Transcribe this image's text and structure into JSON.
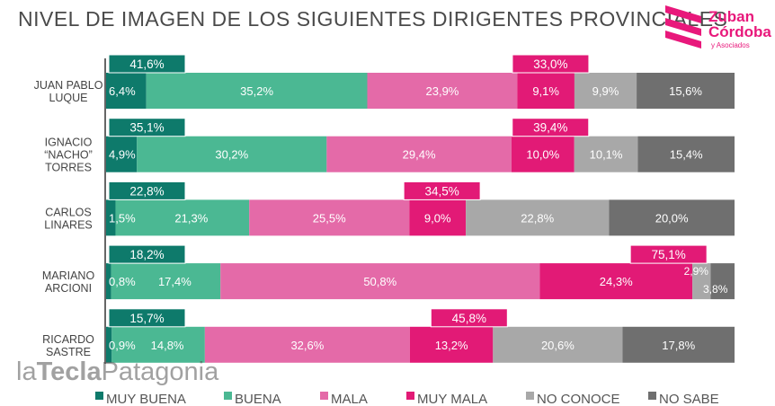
{
  "header": {
    "title": "NIVEL DE IMAGEN DE LOS SIGUIENTES DIRIGENTES PROVINCIALES",
    "brand_line1": "Zuban",
    "brand_line2": "Córdoba",
    "brand_sub": "y Asociados"
  },
  "watermark": {
    "part1": "la",
    "part2": "Tecla",
    "part3": "Patagonia"
  },
  "colors": {
    "muy_buena": "#0e7a6b",
    "buena": "#4bb893",
    "mala": "#e46aa8",
    "muy_mala": "#e21a76",
    "no_conoce": "#a8a8a8",
    "no_sabe": "#6f6f6f",
    "brand": "#e8187b"
  },
  "chart_data": {
    "type": "bar",
    "orientation": "horizontal",
    "stacked": true,
    "title": "NIVEL DE IMAGEN DE LOS SIGUIENTES DIRIGENTES PROVINCIALES",
    "categories": [
      [
        "JUAN PABLO",
        "LUQUE"
      ],
      [
        "IGNACIO",
        "“NACHO”",
        "TORRES"
      ],
      [
        "CARLOS",
        "LINARES"
      ],
      [
        "MARIANO",
        "ARCIONI"
      ],
      [
        "RICARDO",
        "SASTRE"
      ]
    ],
    "series": [
      {
        "name": "MUY BUENA",
        "key": "muy_buena",
        "values": [
          6.4,
          4.9,
          1.5,
          0.8,
          0.9
        ],
        "labels": [
          "6,4%",
          "4,9%",
          "1,5%",
          "0,8%",
          "0,9%"
        ]
      },
      {
        "name": "BUENA",
        "key": "buena",
        "values": [
          35.2,
          30.2,
          21.3,
          17.4,
          14.8
        ],
        "labels": [
          "35,2%",
          "30,2%",
          "21,3%",
          "17,4%",
          "14,8%"
        ]
      },
      {
        "name": "MALA",
        "key": "mala",
        "values": [
          23.9,
          29.4,
          25.5,
          50.8,
          32.6
        ],
        "labels": [
          "23,9%",
          "29,4%",
          "25,5%",
          "50,8%",
          "32,6%"
        ]
      },
      {
        "name": "MUY MALA",
        "key": "muy_mala",
        "values": [
          9.1,
          10.0,
          9.0,
          24.3,
          13.2
        ],
        "labels": [
          "9,1%",
          "10,0%",
          "9,0%",
          "24,3%",
          "13,2%"
        ]
      },
      {
        "name": "NO CONOCE",
        "key": "no_conoce",
        "values": [
          9.9,
          10.1,
          22.8,
          2.9,
          20.6
        ],
        "labels": [
          "9,9%",
          "10,1%",
          "22,8%",
          "2,9%",
          "20,6%"
        ]
      },
      {
        "name": "NO SABE",
        "key": "no_sabe",
        "values": [
          15.6,
          15.4,
          20.0,
          3.8,
          17.8
        ],
        "labels": [
          "15,6%",
          "15,4%",
          "20,0%",
          "3,8%",
          "17,8%"
        ]
      }
    ],
    "positive_totals": [
      "41,6%",
      "35,1%",
      "22,8%",
      "18,2%",
      "15,7%"
    ],
    "negative_totals": [
      "33,0%",
      "39,4%",
      "34,5%",
      "75,1%",
      "45,8%"
    ],
    "xlim": [
      0,
      100
    ]
  }
}
